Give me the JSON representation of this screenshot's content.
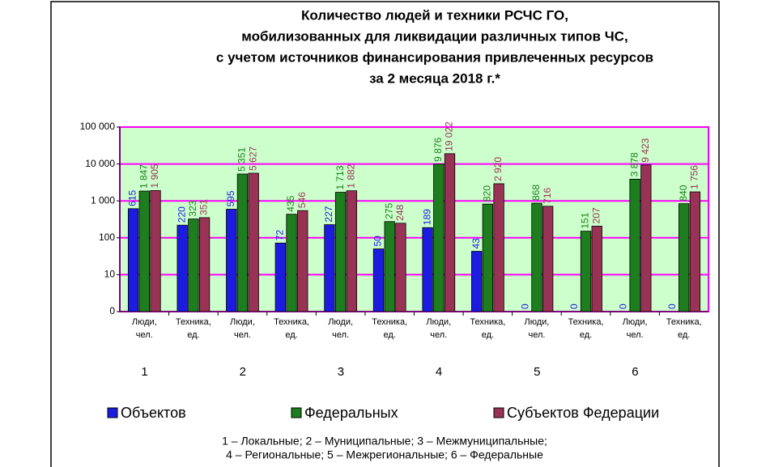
{
  "chart_data": {
    "type": "bar",
    "title": [
      "Количество людей и техники РСЧС ГО,",
      "мобилизованных для ликвидации различных типов ЧС,",
      "с учетом источников финансирования привлеченных ресурсов",
      "за 2 месяца 2018 г.*"
    ],
    "categories": [
      [
        "Люди,",
        "чел."
      ],
      [
        "Техника,",
        "ед."
      ],
      [
        "Люди,",
        "чел."
      ],
      [
        "Техника,",
        "ед."
      ],
      [
        "Люди,",
        "чел."
      ],
      [
        "Техника,",
        "ед."
      ],
      [
        "Люди,",
        "чел."
      ],
      [
        "Техника,",
        "ед."
      ],
      [
        "Люди,",
        "чел."
      ],
      [
        "Техника,",
        "ед."
      ],
      [
        "Люди,",
        "чел."
      ],
      [
        "Техника,",
        "ед."
      ]
    ],
    "groups": [
      "1",
      "2",
      "3",
      "4",
      "5",
      "6"
    ],
    "series": [
      {
        "name": "Объектов",
        "color": "#1c1ce0",
        "values": [
          615,
          220,
          595,
          72,
          227,
          50,
          189,
          43,
          0,
          0,
          0,
          0
        ]
      },
      {
        "name": "Федеральных",
        "color": "#1e7d1e",
        "values": [
          1847,
          323,
          5351,
          435,
          1713,
          275,
          9876,
          820,
          868,
          151,
          3878,
          840
        ],
        "value_labels": [
          "1 847",
          "323",
          "5 351",
          "435",
          "1 713",
          "275",
          "9 876",
          "820",
          "868",
          "151",
          "3 878",
          "840"
        ]
      },
      {
        "name": "Субъектов Федерации",
        "color": "#993355",
        "values": [
          1905,
          351,
          5627,
          546,
          1882,
          248,
          19022,
          2920,
          716,
          207,
          9423,
          1756
        ],
        "value_labels": [
          "1 905",
          "351",
          "5 627",
          "546",
          "1 882",
          "248",
          "19 022",
          "2 920",
          "716",
          "207",
          "9 423",
          "1 756"
        ]
      }
    ],
    "ylim": [
      1,
      100000
    ],
    "log_scale": true,
    "grid": true,
    "yticks": [
      0,
      10,
      100,
      {
        "value": 1000,
        "label": "1 000"
      },
      {
        "value": 10000,
        "label": "10 000"
      },
      {
        "value": 100000,
        "label": "100 000"
      }
    ],
    "legend": "bottom",
    "footnote": [
      "1 – Локальные; 2 – Муниципальные; 3 – Межмуниципальные;",
      "4 – Региональные; 5 – Межрегиональные; 6 – Федеральные"
    ]
  }
}
